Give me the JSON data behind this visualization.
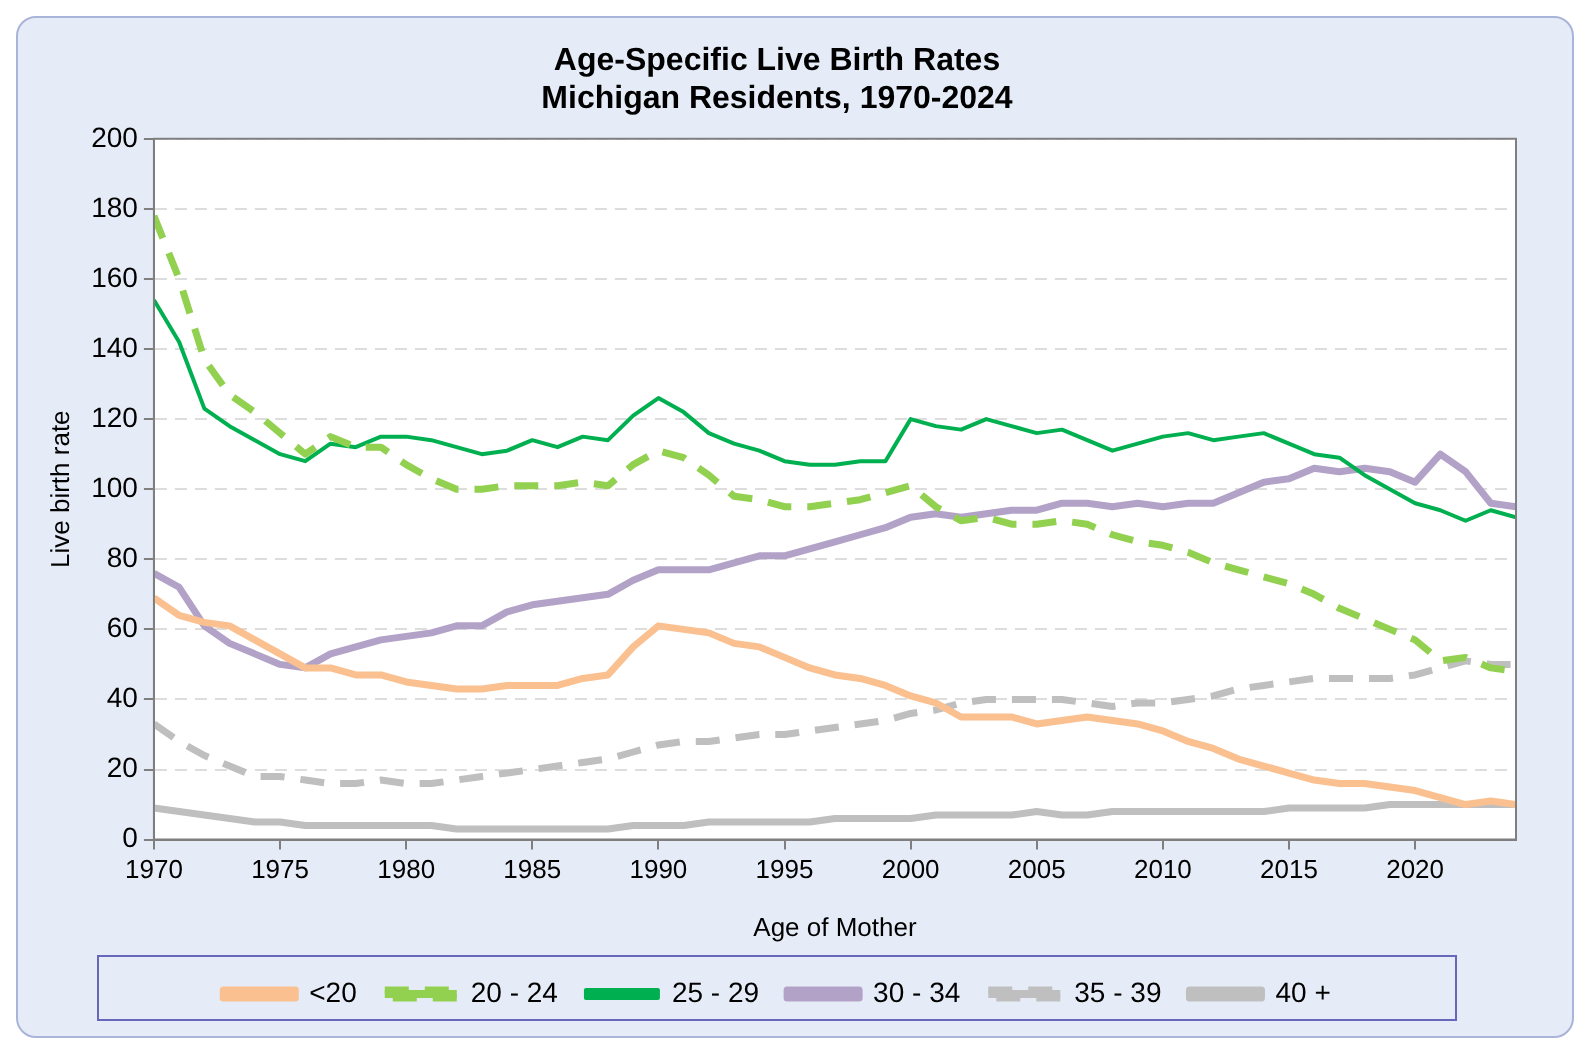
{
  "chart_data": {
    "type": "line",
    "title": "Age-Specific Live Birth Rates",
    "subtitle": "Michigan Residents, 1970-2024",
    "xlabel": "Age of Mother",
    "ylabel": "Live birth rate",
    "x": [
      1970,
      1971,
      1972,
      1973,
      1974,
      1975,
      1976,
      1977,
      1978,
      1979,
      1980,
      1981,
      1982,
      1983,
      1984,
      1985,
      1986,
      1987,
      1988,
      1989,
      1990,
      1991,
      1992,
      1993,
      1994,
      1995,
      1996,
      1997,
      1998,
      1999,
      2000,
      2001,
      2002,
      2003,
      2004,
      2005,
      2006,
      2007,
      2008,
      2009,
      2010,
      2011,
      2012,
      2013,
      2014,
      2015,
      2016,
      2017,
      2018,
      2019,
      2020,
      2021,
      2022,
      2023,
      2024
    ],
    "xlim": [
      1970,
      2024
    ],
    "xticks": [
      1970,
      1975,
      1980,
      1985,
      1990,
      1995,
      2000,
      2005,
      2010,
      2015,
      2020
    ],
    "ylim": [
      0,
      200
    ],
    "yticks": [
      0,
      20,
      40,
      60,
      80,
      100,
      120,
      140,
      160,
      180,
      200
    ],
    "grid": "y",
    "legend": "bottom",
    "marker": "none",
    "series": [
      {
        "name": "<20",
        "color": "#fac090",
        "line_style": "solid",
        "values": [
          69,
          64,
          62,
          61,
          57,
          53,
          49,
          49,
          47,
          47,
          45,
          44,
          43,
          43,
          44,
          44,
          44,
          46,
          47,
          55,
          61,
          60,
          59,
          56,
          55,
          52,
          49,
          47,
          46,
          44,
          41,
          39,
          35,
          35,
          35,
          33,
          34,
          35,
          34,
          33,
          31,
          28,
          26,
          23,
          21,
          19,
          17,
          16,
          16,
          15,
          14,
          12,
          10,
          11,
          10
        ]
      },
      {
        "name": "20 - 24",
        "color": "#92d050",
        "line_style": "dashed",
        "values": [
          178,
          160,
          137,
          127,
          122,
          116,
          110,
          115,
          112,
          112,
          107,
          103,
          100,
          100,
          101,
          101,
          101,
          102,
          101,
          107,
          111,
          109,
          104,
          98,
          97,
          95,
          95,
          96,
          97,
          99,
          101,
          95,
          91,
          92,
          90,
          90,
          91,
          90,
          87,
          85,
          84,
          82,
          79,
          77,
          75,
          73,
          70,
          66,
          63,
          60,
          57,
          51,
          52,
          49,
          48
        ]
      },
      {
        "name": "25 - 29",
        "color": "#00b050",
        "line_style": "solid",
        "values": [
          154,
          142,
          123,
          118,
          114,
          110,
          108,
          113,
          112,
          115,
          115,
          114,
          112,
          110,
          111,
          114,
          112,
          115,
          114,
          121,
          126,
          122,
          116,
          113,
          111,
          108,
          107,
          107,
          108,
          108,
          120,
          118,
          117,
          120,
          118,
          116,
          117,
          114,
          111,
          113,
          115,
          116,
          114,
          115,
          116,
          113,
          110,
          109,
          104,
          100,
          96,
          94,
          91,
          94,
          92
        ]
      },
      {
        "name": "30 - 34",
        "color": "#b3a2c7",
        "line_style": "solid",
        "values": [
          76,
          72,
          61,
          56,
          53,
          50,
          49,
          53,
          55,
          57,
          58,
          59,
          61,
          61,
          65,
          67,
          68,
          69,
          70,
          74,
          77,
          77,
          77,
          79,
          81,
          81,
          83,
          85,
          87,
          89,
          92,
          93,
          92,
          93,
          94,
          94,
          96,
          96,
          95,
          96,
          95,
          96,
          96,
          99,
          102,
          103,
          106,
          105,
          106,
          105,
          102,
          110,
          105,
          96,
          95
        ]
      },
      {
        "name": "35 - 39",
        "color": "#bfbfbf",
        "line_style": "dashed",
        "values": [
          33,
          28,
          24,
          21,
          18,
          18,
          17,
          16,
          16,
          17,
          16,
          16,
          17,
          18,
          19,
          20,
          21,
          22,
          23,
          25,
          27,
          28,
          28,
          29,
          30,
          30,
          31,
          32,
          33,
          34,
          36,
          37,
          39,
          40,
          40,
          40,
          40,
          39,
          38,
          39,
          39,
          40,
          41,
          43,
          44,
          45,
          46,
          46,
          46,
          46,
          47,
          49,
          51,
          50,
          50
        ]
      },
      {
        "name": "40 +",
        "color": "#bfbfbf",
        "line_style": "solid",
        "values": [
          9,
          8,
          7,
          6,
          5,
          5,
          4,
          4,
          4,
          4,
          4,
          4,
          3,
          3,
          3,
          3,
          3,
          3,
          3,
          4,
          4,
          4,
          5,
          5,
          5,
          5,
          5,
          6,
          6,
          6,
          6,
          7,
          7,
          7,
          7,
          8,
          7,
          7,
          8,
          8,
          8,
          8,
          8,
          8,
          8,
          9,
          9,
          9,
          9,
          10,
          10,
          10,
          10,
          10,
          10
        ]
      }
    ]
  }
}
